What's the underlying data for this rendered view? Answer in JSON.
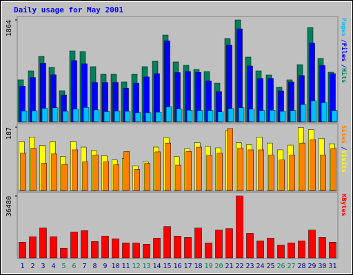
{
  "chart_data": [
    {
      "type": "bar",
      "title": "Daily usage for May 2001",
      "ylim": [
        0,
        1864
      ],
      "yticks": [
        1864
      ],
      "legend_separator": "/",
      "series": [
        {
          "name": "Hits",
          "color": "#00805c",
          "values": [
            768,
            932,
            1196,
            995,
            567,
            1297,
            1285,
            1008,
            869,
            869,
            730,
            869,
            1008,
            1108,
            1587,
            1096,
            1033,
            957,
            919,
            705,
            1524,
            1864,
            1184,
            932,
            856,
            630,
            768,
            1045,
            1725,
            1158,
            907
          ]
        },
        {
          "name": "Files",
          "color": "#0000ff",
          "values": [
            652,
            810,
            1070,
            860,
            490,
            1120,
            1060,
            720,
            720,
            720,
            615,
            705,
            820,
            880,
            1480,
            900,
            920,
            905,
            745,
            550,
            1405,
            1700,
            1020,
            790,
            790,
            565,
            730,
            845,
            1440,
            1030,
            880
          ]
        },
        {
          "name": "Pages",
          "color": "#00c0ff",
          "values": [
            195,
            200,
            245,
            255,
            190,
            230,
            260,
            215,
            185,
            195,
            190,
            165,
            165,
            175,
            270,
            235,
            210,
            205,
            205,
            180,
            240,
            255,
            230,
            205,
            210,
            190,
            205,
            315,
            380,
            350,
            205
          ]
        }
      ]
    },
    {
      "type": "bar",
      "ylim": [
        0,
        187
      ],
      "yticks": [
        187
      ],
      "legend_separator": "/",
      "series": [
        {
          "name": "Visits",
          "color": "#ffff00",
          "values": [
            145,
            158,
            133,
            145,
            100,
            145,
            128,
            118,
            103,
            90,
            95,
            73,
            85,
            128,
            156,
            100,
            123,
            141,
            130,
            126,
            177,
            141,
            135,
            158,
            140,
            120,
            134,
            186,
            180,
            154,
            138
          ]
        },
        {
          "name": "Sites",
          "color": "#ff8000",
          "values": [
            110,
            125,
            80,
            108,
            77,
            120,
            85,
            105,
            85,
            76,
            115,
            62,
            80,
            114,
            140,
            75,
            115,
            128,
            104,
            110,
            183,
            125,
            120,
            120,
            105,
            90,
            105,
            140,
            150,
            105,
            124
          ]
        }
      ]
    },
    {
      "type": "bar",
      "ylim": [
        0,
        36480
      ],
      "yticks": [
        36480
      ],
      "categories": [
        "1",
        "2",
        "3",
        "4",
        "5",
        "6",
        "7",
        "8",
        "9",
        "10",
        "11",
        "12",
        "13",
        "14",
        "15",
        "16",
        "17",
        "18",
        "19",
        "20",
        "21",
        "22",
        "23",
        "24",
        "25",
        "26",
        "27",
        "28",
        "29",
        "30",
        "31"
      ],
      "category_colors": [
        "#00008b",
        "#00008b",
        "#00008b",
        "#00008b",
        "#00805c",
        "#00805c",
        "#00008b",
        "#00008b",
        "#00008b",
        "#00008b",
        "#00008b",
        "#00805c",
        "#00805c",
        "#00008b",
        "#00008b",
        "#00008b",
        "#00008b",
        "#00008b",
        "#00805c",
        "#00805c",
        "#00008b",
        "#00008b",
        "#00008b",
        "#00008b",
        "#00008b",
        "#00805c",
        "#00805c",
        "#00008b",
        "#00008b",
        "#00008b",
        "#00008b"
      ],
      "series": [
        {
          "name": "KBytes",
          "color": "#ff0000",
          "values": [
            9200,
            12400,
            17600,
            12400,
            5600,
            15200,
            16000,
            9600,
            12800,
            11200,
            8800,
            8800,
            8000,
            11600,
            18400,
            12800,
            12000,
            17600,
            8800,
            16400,
            17200,
            36480,
            14400,
            10000,
            11600,
            7600,
            8800,
            10000,
            16400,
            12000,
            9200
          ]
        }
      ]
    }
  ]
}
